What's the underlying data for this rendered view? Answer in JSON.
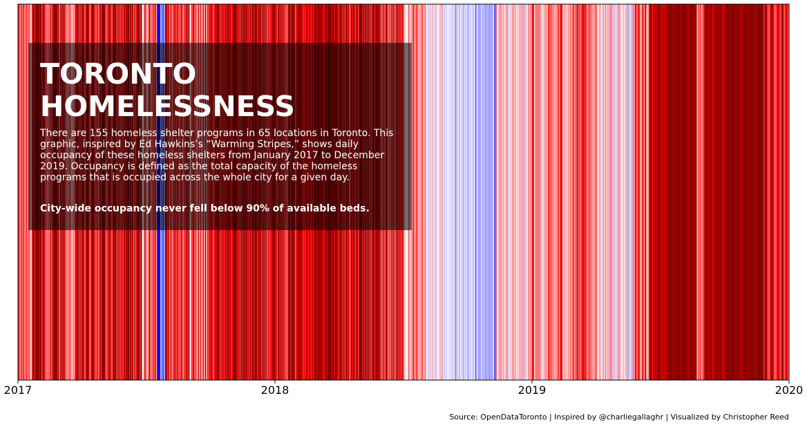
{
  "chart_data": {
    "type": "heatmap",
    "title": "TORONTO HOMELESSNESS",
    "description": "There are 155 homeless shelter programs in 65 locations in Toronto. This graphic, inspired by Ed Hawkins’s “Warming Stripes,” shows daily occupancy of these homeless shelters from January 2017 to December 2019. Occupancy is defined as the total capacity of the homeless programs that is occupied across the whole city for a given day.",
    "highlight": "City-wide occupancy never fell below 90% of available beds.",
    "x_ticks": [
      "2017",
      "2018",
      "2019",
      "2020"
    ],
    "x_range": [
      "2017-01-01",
      "2020-01-01"
    ],
    "colormap": "bwr",
    "colors": {
      "cold": "#0000ff",
      "neutral": "#ffffff",
      "hot": "#ff0000",
      "very_hot": "#800000"
    },
    "stripe_scale": [
      -1,
      1
    ],
    "stripe_segments": [
      [
        0.018,
        0.034,
        0.85,
        0.35
      ],
      [
        0.034,
        0.042,
        0.45,
        0.5
      ],
      [
        0.042,
        0.06,
        0.8,
        0.4
      ],
      [
        0.06,
        0.075,
        0.35,
        0.45
      ],
      [
        0.075,
        0.16,
        0.75,
        0.45
      ],
      [
        0.16,
        0.18,
        0.45,
        0.5
      ],
      [
        0.18,
        0.18,
        -0.7,
        0.3
      ],
      [
        0.18,
        0.184,
        -0.95,
        0.1
      ],
      [
        0.184,
        0.19,
        -0.35,
        0.3
      ],
      [
        0.19,
        0.22,
        0.7,
        0.4
      ],
      [
        0.22,
        0.25,
        0.5,
        0.5
      ],
      [
        0.25,
        0.36,
        0.85,
        0.4
      ],
      [
        0.36,
        0.42,
        0.9,
        0.25
      ],
      [
        0.42,
        0.47,
        0.8,
        0.4
      ],
      [
        0.47,
        0.5,
        0.65,
        0.45
      ],
      [
        0.5,
        0.53,
        0.25,
        0.4
      ],
      [
        0.53,
        0.55,
        0.05,
        0.35
      ],
      [
        0.55,
        0.6,
        -0.25,
        0.35
      ],
      [
        0.6,
        0.62,
        -0.35,
        0.3
      ],
      [
        0.62,
        0.665,
        0.1,
        0.4
      ],
      [
        0.665,
        0.7,
        0.35,
        0.45
      ],
      [
        0.7,
        0.74,
        0.45,
        0.45
      ],
      [
        0.74,
        0.77,
        0.25,
        0.4
      ],
      [
        0.77,
        0.8,
        0.05,
        0.4
      ],
      [
        0.8,
        0.818,
        0.5,
        0.35
      ],
      [
        0.818,
        0.842,
        0.9,
        0.2
      ],
      [
        0.842,
        0.88,
        0.98,
        0.1
      ],
      [
        0.88,
        0.89,
        0.5,
        0.4
      ],
      [
        0.89,
        0.94,
        0.95,
        0.15
      ],
      [
        0.94,
        0.965,
        0.98,
        0.1
      ],
      [
        0.965,
        1.0,
        0.75,
        0.4
      ]
    ],
    "stripes_count": 1095
  },
  "footer": {
    "source": "Source: OpenDataToronto | Inspired by @charliegallaghr | Visualized by Christopher Reed"
  }
}
